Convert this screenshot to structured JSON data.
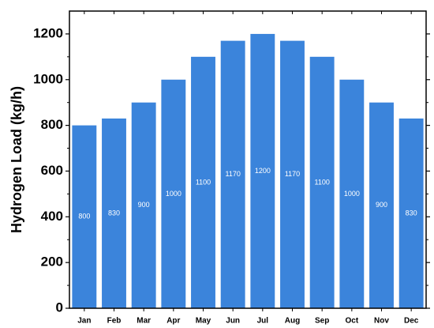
{
  "chart_data": {
    "type": "bar",
    "y_label": "Hydrogen Load (kg/h)",
    "categories": [
      "Jan",
      "Feb",
      "Mar",
      "Apr",
      "May",
      "Jun",
      "Jul",
      "Aug",
      "Sep",
      "Oct",
      "Nov",
      "Dec"
    ],
    "values": [
      800,
      830,
      900,
      1000,
      1100,
      1170,
      1200,
      1170,
      1100,
      1000,
      900,
      830
    ],
    "color": "#3b84db",
    "ylim": [
      0,
      1300
    ],
    "yticks": [
      0,
      200,
      400,
      600,
      800,
      1000,
      1200
    ],
    "grid": false
  }
}
